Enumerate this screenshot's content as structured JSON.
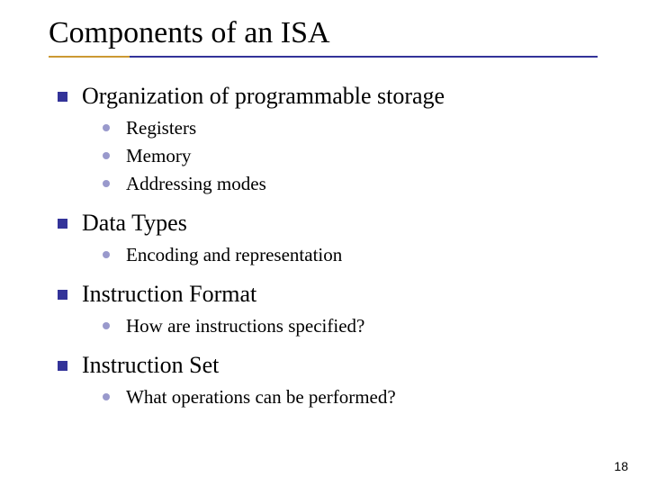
{
  "slide": {
    "title": "Components of an ISA",
    "page_number": "18",
    "colors": {
      "text": "#000000",
      "background": "#ffffff",
      "underline_accent": "#cc9933",
      "underline_main": "#333399",
      "square_bullet": "#333399",
      "dot_bullet": "#9999cc",
      "pagenum_color": "#000000"
    },
    "fonts": {
      "title_family": "Times New Roman",
      "title_size_pt": 34,
      "l1_size_pt": 26,
      "l2_size_pt": 21,
      "pagenum_family": "Arial",
      "pagenum_size_pt": 14
    },
    "items": [
      {
        "label": "Organization of programmable storage",
        "children": [
          {
            "label": "Registers"
          },
          {
            "label": "Memory"
          },
          {
            "label": "Addressing modes"
          }
        ]
      },
      {
        "label": "Data Types",
        "children": [
          {
            "label": "Encoding and representation"
          }
        ]
      },
      {
        "label": "Instruction Format",
        "children": [
          {
            "label": "How are instructions specified?"
          }
        ]
      },
      {
        "label": "Instruction Set",
        "children": [
          {
            "label": "What operations can be performed?"
          }
        ]
      }
    ]
  }
}
